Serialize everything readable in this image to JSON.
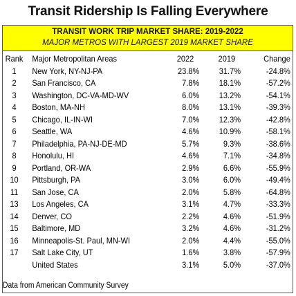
{
  "title": "Transit Ridership Is Falling Everywhere",
  "banner": {
    "line1": "TRANSIT WORK TRIP MARKET SHARE: 2019-2022",
    "line2": "MAJOR METROS WITH LARGEST 2019 MARKET SHARE"
  },
  "source": "Data from American Community Survey",
  "chart_data": {
    "type": "table",
    "title": "Transit Ridership Is Falling Everywhere",
    "columns": [
      "Rank",
      "Major Metropolitan Areas",
      "2022",
      "2019",
      "Change"
    ],
    "rows": [
      {
        "rank": "1",
        "area": "New York, NY-NJ-PA",
        "v2022": "23.8%",
        "v2019": "31.7%",
        "change": "-24.8%"
      },
      {
        "rank": "2",
        "area": "San Francisco, CA",
        "v2022": "7.8%",
        "v2019": "18.1%",
        "change": "-57.2%"
      },
      {
        "rank": "3",
        "area": "Washington, DC-VA-MD-WV",
        "v2022": "6.0%",
        "v2019": "13.2%",
        "change": "-54.1%"
      },
      {
        "rank": "4",
        "area": "Boston, MA-NH",
        "v2022": "8.0%",
        "v2019": "13.1%",
        "change": "-39.3%"
      },
      {
        "rank": "5",
        "area": "Chicago, IL-IN-WI",
        "v2022": "7.0%",
        "v2019": "12.3%",
        "change": "-42.8%"
      },
      {
        "rank": "6",
        "area": "Seattle, WA",
        "v2022": "4.6%",
        "v2019": "10.9%",
        "change": "-58.1%"
      },
      {
        "rank": "7",
        "area": "Philadelphia, PA-NJ-DE-MD",
        "v2022": "5.7%",
        "v2019": "9.3%",
        "change": "-38.6%"
      },
      {
        "rank": "8",
        "area": "Honolulu, HI",
        "v2022": "4.6%",
        "v2019": "7.1%",
        "change": "-34.8%"
      },
      {
        "rank": "9",
        "area": "Portland, OR-WA",
        "v2022": "2.9%",
        "v2019": "6.6%",
        "change": "-55.9%"
      },
      {
        "rank": "10",
        "area": "Pittsburgh, PA",
        "v2022": "3.0%",
        "v2019": "6.0%",
        "change": "-49.4%"
      },
      {
        "rank": "11",
        "area": "San Jose, CA",
        "v2022": "2.0%",
        "v2019": "5.8%",
        "change": "-64.8%"
      },
      {
        "rank": "13",
        "area": "Los Angeles, CA",
        "v2022": "3.1%",
        "v2019": "4.7%",
        "change": "-33.3%"
      },
      {
        "rank": "14",
        "area": "Denver, CO",
        "v2022": "2.2%",
        "v2019": "4.6%",
        "change": "-51.9%"
      },
      {
        "rank": "15",
        "area": "Baltimore, MD",
        "v2022": "3.2%",
        "v2019": "4.6%",
        "change": "-31.2%"
      },
      {
        "rank": "16",
        "area": "Minneapolis-St. Paul, MN-WI",
        "v2022": "2.0%",
        "v2019": "4.4%",
        "change": "-55.0%"
      },
      {
        "rank": "17",
        "area": "Salt Lake City, UT",
        "v2022": "1.6%",
        "v2019": "3.8%",
        "change": "-57.9%"
      },
      {
        "rank": "",
        "area": "United States",
        "v2022": "3.1%",
        "v2019": "5.0%",
        "change": "-37.0%"
      }
    ]
  },
  "colors": {
    "banner_background": "#ffff00",
    "border": "#555555",
    "text": "#000000"
  }
}
